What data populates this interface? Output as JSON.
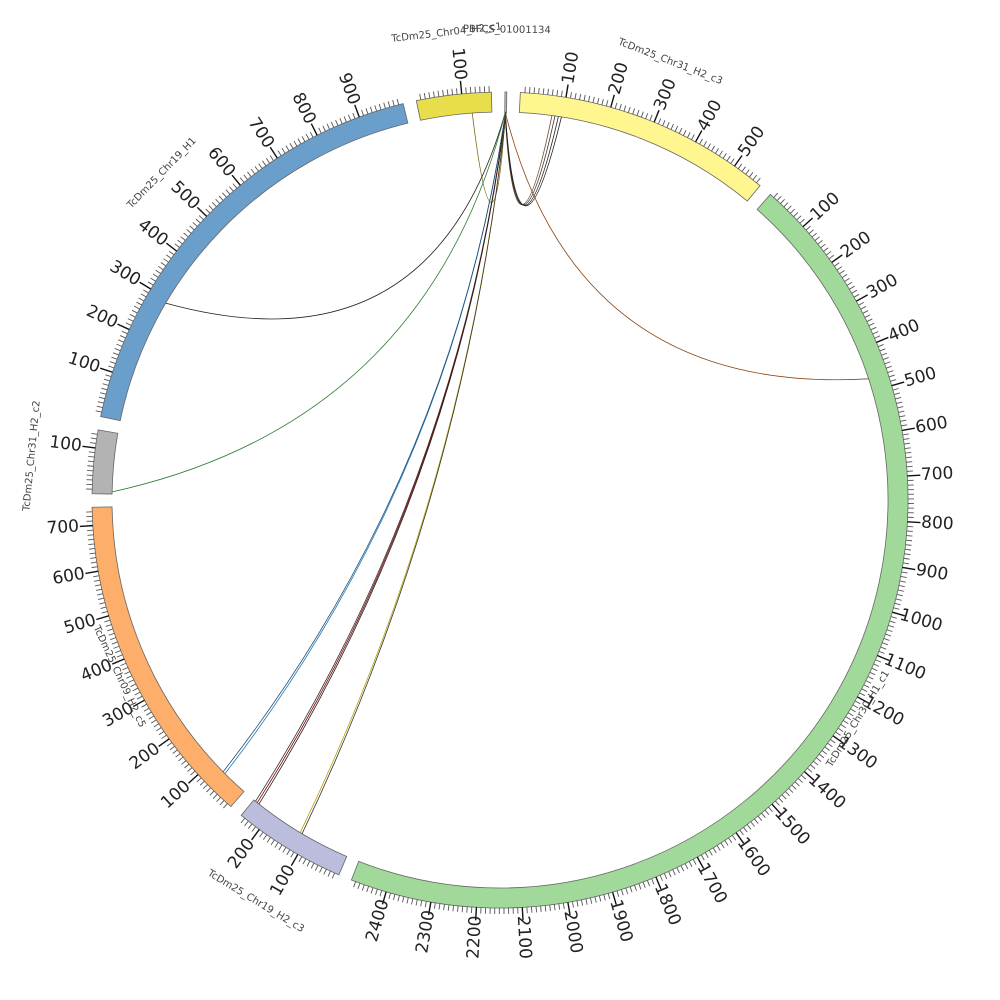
{
  "chart_data": {
    "type": "chord",
    "title": "",
    "tick_step_major": 100,
    "tick_step_minor": 10,
    "segments": [
      {
        "name": "PBFCS_01001134",
        "length": 4,
        "color": "#A6CEE3",
        "label_pos": "outer"
      },
      {
        "name": "TcDm25_Chr31_H2_c3",
        "length": 570,
        "color": "#FFF68F",
        "label_pos": "outer"
      },
      {
        "name": "TcDm25_Chr30_H1_c1",
        "length": 2480,
        "color": "#A1D99B",
        "label_pos": "inner"
      },
      {
        "name": "TcDm25_Chr19_H2_c3",
        "length": 250,
        "color": "#BCBDDC",
        "label_pos": "outer"
      },
      {
        "name": "TcDm25_Chr09_H2_c5",
        "length": 740,
        "color": "#FDAE6B",
        "label_pos": "inner"
      },
      {
        "name": "TcDm25_Chr31_H2_c2",
        "length": 140,
        "color": "#B3B3B3",
        "label_pos": "outer"
      },
      {
        "name": "TcDm25_Chr19_H1",
        "length": 1000,
        "color": "#6A9FCC",
        "label_pos": "outer"
      },
      {
        "name": "TcDm25_Chr04_H2_c1",
        "length": 165,
        "color": "#E8DD4A",
        "label_pos": "outer"
      }
    ],
    "links": [
      {
        "from": "PBFCS_01001134",
        "from_pos": 0.6,
        "to": "TcDm25_Chr31_H2_c3",
        "to_pos": 75,
        "color": "#6B4C2A"
      },
      {
        "from": "PBFCS_01001134",
        "from_pos": 0.8,
        "to": "TcDm25_Chr31_H2_c3",
        "to_pos": 82,
        "color": "#333333"
      },
      {
        "from": "PBFCS_01001134",
        "from_pos": 1.0,
        "to": "TcDm25_Chr31_H2_c3",
        "to_pos": 90,
        "color": "#222222"
      },
      {
        "from": "PBFCS_01001134",
        "from_pos": 1.2,
        "to": "TcDm25_Chr31_H2_c3",
        "to_pos": 97,
        "color": "#222222"
      },
      {
        "from": "PBFCS_01001134",
        "from_pos": 1.0,
        "to": "TcDm25_Chr30_H1_c1",
        "to_pos": 470,
        "color": "#8B4513"
      },
      {
        "from": "PBFCS_01001134",
        "from_pos": 1.4,
        "to": "TcDm25_Chr04_H2_c1",
        "to_pos": 120,
        "color": "#7A6A10"
      },
      {
        "from": "PBFCS_01001134",
        "from_pos": 1.6,
        "to": "TcDm25_Chr19_H1",
        "to_pos": 290,
        "color": "#222222"
      },
      {
        "from": "PBFCS_01001134",
        "from_pos": 1.8,
        "to": "TcDm25_Chr31_H2_c2",
        "to_pos": 5,
        "color": "#2E7D32"
      },
      {
        "from": "PBFCS_01001134",
        "from_pos": 2.0,
        "to": "TcDm25_Chr09_H2_c5",
        "to_pos": 60,
        "color": "#1F78B4"
      },
      {
        "from": "PBFCS_01001134",
        "from_pos": 2.2,
        "to": "TcDm25_Chr09_H2_c5",
        "to_pos": 66,
        "color": "#1F4E79"
      },
      {
        "from": "PBFCS_01001134",
        "from_pos": 2.4,
        "to": "TcDm25_Chr19_H2_c3",
        "to_pos": 245,
        "color": "#333333"
      },
      {
        "from": "PBFCS_01001134",
        "from_pos": 2.6,
        "to": "TcDm25_Chr19_H2_c3",
        "to_pos": 240,
        "color": "#8B0000"
      },
      {
        "from": "PBFCS_01001134",
        "from_pos": 2.8,
        "to": "TcDm25_Chr19_H2_c3",
        "to_pos": 235,
        "color": "#222222"
      },
      {
        "from": "PBFCS_01001134",
        "from_pos": 3.0,
        "to": "TcDm25_Chr19_H2_c3",
        "to_pos": 120,
        "color": "#B8A400"
      },
      {
        "from": "PBFCS_01001134",
        "from_pos": 3.2,
        "to": "TcDm25_Chr19_H2_c3",
        "to_pos": 115,
        "color": "#333333"
      }
    ]
  }
}
